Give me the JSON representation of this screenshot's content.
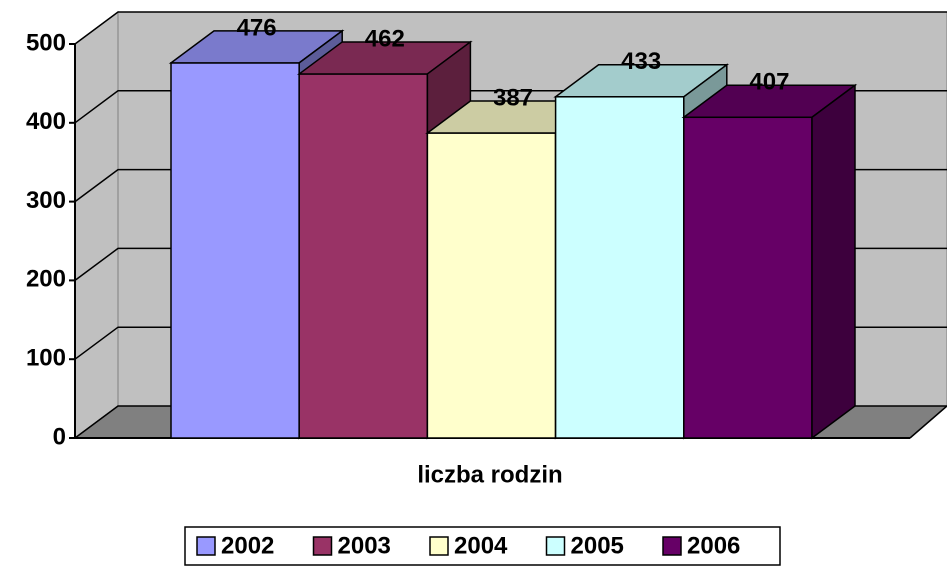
{
  "chart_data": {
    "type": "bar3d",
    "categories": [
      "liczba rodzin"
    ],
    "series": [
      {
        "name": "2002",
        "color": "#9999ff",
        "values": [
          476
        ]
      },
      {
        "name": "2003",
        "color": "#993366",
        "values": [
          462
        ]
      },
      {
        "name": "2004",
        "color": "#ffffcc",
        "values": [
          387
        ]
      },
      {
        "name": "2005",
        "color": "#ccffff",
        "values": [
          433
        ]
      },
      {
        "name": "2006",
        "color": "#660066",
        "values": [
          407
        ]
      }
    ],
    "ylim": [
      0,
      500
    ],
    "yticks": [
      0,
      100,
      200,
      300,
      400,
      500
    ],
    "grid": true,
    "legend": "bottom"
  }
}
